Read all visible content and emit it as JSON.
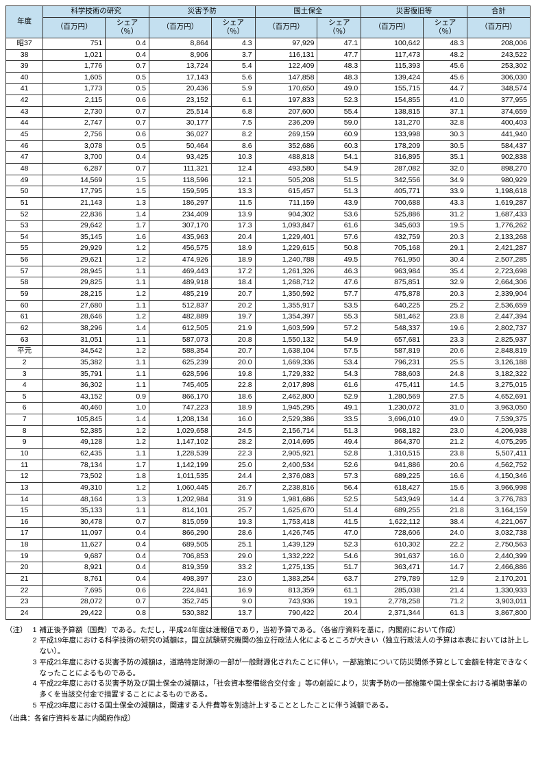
{
  "table": {
    "header_bg": "#c4e0f0",
    "border_color": "#333333",
    "columns": {
      "year": "年度",
      "groups": [
        {
          "label": "科学技術の研究",
          "val": "（百万円）",
          "pct": "シェア\n（％）"
        },
        {
          "label": "災害予防",
          "val": "（百万円）",
          "pct": "シェア\n（％）"
        },
        {
          "label": "国土保全",
          "val": "（百万円）",
          "pct": "シェア\n（％）"
        },
        {
          "label": "災害復旧等",
          "val": "（百万円）",
          "pct": "シェア\n（％）"
        }
      ],
      "total_label": "合計",
      "total_unit": "（百万円）"
    },
    "rows": [
      {
        "year": "昭37",
        "v": [
          [
            "751",
            "0.4"
          ],
          [
            "8,864",
            "4.3"
          ],
          [
            "97,929",
            "47.1"
          ],
          [
            "100,642",
            "48.3"
          ]
        ],
        "total": "208,006"
      },
      {
        "year": "38",
        "v": [
          [
            "1,021",
            "0.4"
          ],
          [
            "8,906",
            "3.7"
          ],
          [
            "116,131",
            "47.7"
          ],
          [
            "117,473",
            "48.2"
          ]
        ],
        "total": "243,522"
      },
      {
        "year": "39",
        "v": [
          [
            "1,776",
            "0.7"
          ],
          [
            "13,724",
            "5.4"
          ],
          [
            "122,409",
            "48.3"
          ],
          [
            "115,393",
            "45.6"
          ]
        ],
        "total": "253,302"
      },
      {
        "year": "40",
        "v": [
          [
            "1,605",
            "0.5"
          ],
          [
            "17,143",
            "5.6"
          ],
          [
            "147,858",
            "48.3"
          ],
          [
            "139,424",
            "45.6"
          ]
        ],
        "total": "306,030"
      },
      {
        "year": "41",
        "v": [
          [
            "1,773",
            "0.5"
          ],
          [
            "20,436",
            "5.9"
          ],
          [
            "170,650",
            "49.0"
          ],
          [
            "155,715",
            "44.7"
          ]
        ],
        "total": "348,574"
      },
      {
        "year": "42",
        "v": [
          [
            "2,115",
            "0.6"
          ],
          [
            "23,152",
            "6.1"
          ],
          [
            "197,833",
            "52.3"
          ],
          [
            "154,855",
            "41.0"
          ]
        ],
        "total": "377,955"
      },
      {
        "year": "43",
        "v": [
          [
            "2,730",
            "0.7"
          ],
          [
            "25,514",
            "6.8"
          ],
          [
            "207,600",
            "55.4"
          ],
          [
            "138,815",
            "37.1"
          ]
        ],
        "total": "374,659"
      },
      {
        "year": "44",
        "v": [
          [
            "2,747",
            "0.7"
          ],
          [
            "30,177",
            "7.5"
          ],
          [
            "236,209",
            "59.0"
          ],
          [
            "131,270",
            "32.8"
          ]
        ],
        "total": "400,403"
      },
      {
        "year": "45",
        "v": [
          [
            "2,756",
            "0.6"
          ],
          [
            "36,027",
            "8.2"
          ],
          [
            "269,159",
            "60.9"
          ],
          [
            "133,998",
            "30.3"
          ]
        ],
        "total": "441,940"
      },
      {
        "year": "46",
        "v": [
          [
            "3,078",
            "0.5"
          ],
          [
            "50,464",
            "8.6"
          ],
          [
            "352,686",
            "60.3"
          ],
          [
            "178,209",
            "30.5"
          ]
        ],
        "total": "584,437"
      },
      {
        "year": "47",
        "v": [
          [
            "3,700",
            "0.4"
          ],
          [
            "93,425",
            "10.3"
          ],
          [
            "488,818",
            "54.1"
          ],
          [
            "316,895",
            "35.1"
          ]
        ],
        "total": "902,838"
      },
      {
        "year": "48",
        "v": [
          [
            "6,287",
            "0.7"
          ],
          [
            "111,321",
            "12.4"
          ],
          [
            "493,580",
            "54.9"
          ],
          [
            "287,082",
            "32.0"
          ]
        ],
        "total": "898,270"
      },
      {
        "year": "49",
        "v": [
          [
            "14,569",
            "1.5"
          ],
          [
            "118,596",
            "12.1"
          ],
          [
            "505,208",
            "51.5"
          ],
          [
            "342,556",
            "34.9"
          ]
        ],
        "total": "980,929"
      },
      {
        "year": "50",
        "v": [
          [
            "17,795",
            "1.5"
          ],
          [
            "159,595",
            "13.3"
          ],
          [
            "615,457",
            "51.3"
          ],
          [
            "405,771",
            "33.9"
          ]
        ],
        "total": "1,198,618"
      },
      {
        "year": "51",
        "v": [
          [
            "21,143",
            "1.3"
          ],
          [
            "186,297",
            "11.5"
          ],
          [
            "711,159",
            "43.9"
          ],
          [
            "700,688",
            "43.3"
          ]
        ],
        "total": "1,619,287"
      },
      {
        "year": "52",
        "v": [
          [
            "22,836",
            "1.4"
          ],
          [
            "234,409",
            "13.9"
          ],
          [
            "904,302",
            "53.6"
          ],
          [
            "525,886",
            "31.2"
          ]
        ],
        "total": "1,687,433"
      },
      {
        "year": "53",
        "v": [
          [
            "29,642",
            "1.7"
          ],
          [
            "307,170",
            "17.3"
          ],
          [
            "1,093,847",
            "61.6"
          ],
          [
            "345,603",
            "19.5"
          ]
        ],
        "total": "1,776,262"
      },
      {
        "year": "54",
        "v": [
          [
            "35,145",
            "1.6"
          ],
          [
            "435,963",
            "20.4"
          ],
          [
            "1,229,401",
            "57.6"
          ],
          [
            "432,759",
            "20.3"
          ]
        ],
        "total": "2,133,268"
      },
      {
        "year": "55",
        "v": [
          [
            "29,929",
            "1.2"
          ],
          [
            "456,575",
            "18.9"
          ],
          [
            "1,229,615",
            "50.8"
          ],
          [
            "705,168",
            "29.1"
          ]
        ],
        "total": "2,421,287"
      },
      {
        "year": "56",
        "v": [
          [
            "29,621",
            "1.2"
          ],
          [
            "474,926",
            "18.9"
          ],
          [
            "1,240,788",
            "49.5"
          ],
          [
            "761,950",
            "30.4"
          ]
        ],
        "total": "2,507,285"
      },
      {
        "year": "57",
        "v": [
          [
            "28,945",
            "1.1"
          ],
          [
            "469,443",
            "17.2"
          ],
          [
            "1,261,326",
            "46.3"
          ],
          [
            "963,984",
            "35.4"
          ]
        ],
        "total": "2,723,698"
      },
      {
        "year": "58",
        "v": [
          [
            "29,825",
            "1.1"
          ],
          [
            "489,918",
            "18.4"
          ],
          [
            "1,268,712",
            "47.6"
          ],
          [
            "875,851",
            "32.9"
          ]
        ],
        "total": "2,664,306"
      },
      {
        "year": "59",
        "v": [
          [
            "28,215",
            "1.2"
          ],
          [
            "485,219",
            "20.7"
          ],
          [
            "1,350,592",
            "57.7"
          ],
          [
            "475,878",
            "20.3"
          ]
        ],
        "total": "2,339,904"
      },
      {
        "year": "60",
        "v": [
          [
            "27,680",
            "1.1"
          ],
          [
            "512,837",
            "20.2"
          ],
          [
            "1,355,917",
            "53.5"
          ],
          [
            "640,225",
            "25.2"
          ]
        ],
        "total": "2,536,659"
      },
      {
        "year": "61",
        "v": [
          [
            "28,646",
            "1.2"
          ],
          [
            "482,889",
            "19.7"
          ],
          [
            "1,354,397",
            "55.3"
          ],
          [
            "581,462",
            "23.8"
          ]
        ],
        "total": "2,447,394"
      },
      {
        "year": "62",
        "v": [
          [
            "38,296",
            "1.4"
          ],
          [
            "612,505",
            "21.9"
          ],
          [
            "1,603,599",
            "57.2"
          ],
          [
            "548,337",
            "19.6"
          ]
        ],
        "total": "2,802,737"
      },
      {
        "year": "63",
        "v": [
          [
            "31,051",
            "1.1"
          ],
          [
            "587,073",
            "20.8"
          ],
          [
            "1,550,132",
            "54.9"
          ],
          [
            "657,681",
            "23.3"
          ]
        ],
        "total": "2,825,937"
      },
      {
        "year": "平元",
        "v": [
          [
            "34,542",
            "1.2"
          ],
          [
            "588,354",
            "20.7"
          ],
          [
            "1,638,104",
            "57.5"
          ],
          [
            "587,819",
            "20.6"
          ]
        ],
        "total": "2,848,819"
      },
      {
        "year": "2",
        "v": [
          [
            "35,382",
            "1.1"
          ],
          [
            "625,239",
            "20.0"
          ],
          [
            "1,669,336",
            "53.4"
          ],
          [
            "796,231",
            "25.5"
          ]
        ],
        "total": "3,126,188"
      },
      {
        "year": "3",
        "v": [
          [
            "35,791",
            "1.1"
          ],
          [
            "628,596",
            "19.8"
          ],
          [
            "1,729,332",
            "54.3"
          ],
          [
            "788,603",
            "24.8"
          ]
        ],
        "total": "3,182,322"
      },
      {
        "year": "4",
        "v": [
          [
            "36,302",
            "1.1"
          ],
          [
            "745,405",
            "22.8"
          ],
          [
            "2,017,898",
            "61.6"
          ],
          [
            "475,411",
            "14.5"
          ]
        ],
        "total": "3,275,015"
      },
      {
        "year": "5",
        "v": [
          [
            "43,152",
            "0.9"
          ],
          [
            "866,170",
            "18.6"
          ],
          [
            "2,462,800",
            "52.9"
          ],
          [
            "1,280,569",
            "27.5"
          ]
        ],
        "total": "4,652,691"
      },
      {
        "year": "6",
        "v": [
          [
            "40,460",
            "1.0"
          ],
          [
            "747,223",
            "18.9"
          ],
          [
            "1,945,295",
            "49.1"
          ],
          [
            "1,230,072",
            "31.0"
          ]
        ],
        "total": "3,963,050"
      },
      {
        "year": "7",
        "v": [
          [
            "105,845",
            "1.4"
          ],
          [
            "1,208,134",
            "16.0"
          ],
          [
            "2,529,386",
            "33.5"
          ],
          [
            "3,696,010",
            "49.0"
          ]
        ],
        "total": "7,539,375"
      },
      {
        "year": "8",
        "v": [
          [
            "52,385",
            "1.2"
          ],
          [
            "1,029,658",
            "24.5"
          ],
          [
            "2,156,714",
            "51.3"
          ],
          [
            "968,182",
            "23.0"
          ]
        ],
        "total": "4,206,938"
      },
      {
        "year": "9",
        "v": [
          [
            "49,128",
            "1.2"
          ],
          [
            "1,147,102",
            "28.2"
          ],
          [
            "2,014,695",
            "49.4"
          ],
          [
            "864,370",
            "21.2"
          ]
        ],
        "total": "4,075,295"
      },
      {
        "year": "10",
        "v": [
          [
            "62,435",
            "1.1"
          ],
          [
            "1,228,539",
            "22.3"
          ],
          [
            "2,905,921",
            "52.8"
          ],
          [
            "1,310,515",
            "23.8"
          ]
        ],
        "total": "5,507,411"
      },
      {
        "year": "11",
        "v": [
          [
            "78,134",
            "1.7"
          ],
          [
            "1,142,199",
            "25.0"
          ],
          [
            "2,400,534",
            "52.6"
          ],
          [
            "941,886",
            "20.6"
          ]
        ],
        "total": "4,562,752"
      },
      {
        "year": "12",
        "v": [
          [
            "73,502",
            "1.8"
          ],
          [
            "1,011,535",
            "24.4"
          ],
          [
            "2,376,083",
            "57.3"
          ],
          [
            "689,225",
            "16.6"
          ]
        ],
        "total": "4,150,346"
      },
      {
        "year": "13",
        "v": [
          [
            "49,310",
            "1.2"
          ],
          [
            "1,060,445",
            "26.7"
          ],
          [
            "2,238,816",
            "56.4"
          ],
          [
            "618,427",
            "15.6"
          ]
        ],
        "total": "3,966,998"
      },
      {
        "year": "14",
        "v": [
          [
            "48,164",
            "1.3"
          ],
          [
            "1,202,984",
            "31.9"
          ],
          [
            "1,981,686",
            "52.5"
          ],
          [
            "543,949",
            "14.4"
          ]
        ],
        "total": "3,776,783"
      },
      {
        "year": "15",
        "v": [
          [
            "35,133",
            "1.1"
          ],
          [
            "814,101",
            "25.7"
          ],
          [
            "1,625,670",
            "51.4"
          ],
          [
            "689,255",
            "21.8"
          ]
        ],
        "total": "3,164,159"
      },
      {
        "year": "16",
        "v": [
          [
            "30,478",
            "0.7"
          ],
          [
            "815,059",
            "19.3"
          ],
          [
            "1,753,418",
            "41.5"
          ],
          [
            "1,622,112",
            "38.4"
          ]
        ],
        "total": "4,221,067"
      },
      {
        "year": "17",
        "v": [
          [
            "11,097",
            "0.4"
          ],
          [
            "866,290",
            "28.6"
          ],
          [
            "1,426,745",
            "47.0"
          ],
          [
            "728,606",
            "24.0"
          ]
        ],
        "total": "3,032,738"
      },
      {
        "year": "18",
        "v": [
          [
            "11,627",
            "0.4"
          ],
          [
            "689,505",
            "25.1"
          ],
          [
            "1,439,129",
            "52.3"
          ],
          [
            "610,302",
            "22.2"
          ]
        ],
        "total": "2,750,563"
      },
      {
        "year": "19",
        "v": [
          [
            "9,687",
            "0.4"
          ],
          [
            "706,853",
            "29.0"
          ],
          [
            "1,332,222",
            "54.6"
          ],
          [
            "391,637",
            "16.0"
          ]
        ],
        "total": "2,440,399"
      },
      {
        "year": "20",
        "v": [
          [
            "8,921",
            "0.4"
          ],
          [
            "819,359",
            "33.2"
          ],
          [
            "1,275,135",
            "51.7"
          ],
          [
            "363,471",
            "14.7"
          ]
        ],
        "total": "2,466,886"
      },
      {
        "year": "21",
        "v": [
          [
            "8,761",
            "0.4"
          ],
          [
            "498,397",
            "23.0"
          ],
          [
            "1,383,254",
            "63.7"
          ],
          [
            "279,789",
            "12.9"
          ]
        ],
        "total": "2,170,201"
      },
      {
        "year": "22",
        "v": [
          [
            "7,695",
            "0.6"
          ],
          [
            "224,841",
            "16.9"
          ],
          [
            "813,359",
            "61.1"
          ],
          [
            "285,038",
            "21.4"
          ]
        ],
        "total": "1,330,933"
      },
      {
        "year": "23",
        "v": [
          [
            "28,072",
            "0.7"
          ],
          [
            "352,745",
            "9.0"
          ],
          [
            "743,936",
            "19.1"
          ],
          [
            "2,778,258",
            "71.2"
          ]
        ],
        "total": "3,903,011"
      },
      {
        "year": "24",
        "v": [
          [
            "29,422",
            "0.8"
          ],
          [
            "530,382",
            "13.7"
          ],
          [
            "790,422",
            "20.4"
          ],
          [
            "2,371,344",
            "61.3"
          ]
        ],
        "total": "3,867,800"
      }
    ]
  },
  "notes": {
    "prefix": "（注）",
    "items": [
      "補正後予算額（国費）である。ただし，平成24年度は速報値であり，当初予算である。（各省庁資料を基に，内閣府において作成）",
      "平成19年度における科学技術の研究の減額は，国立試験研究機関の独立行政法人化によるところが大きい（独立行政法人の予算は本表においては計上しない）。",
      "平成21年度における災害予防の減額は，道路特定財源の一部が一般財源化されたことに伴い，一部施策について防災関係予算として金額を特定できなくなったことによるものである。",
      "平成22年度における災害予防及び国土保全の減額は，「社会資本整備総合交付金 」等の創設により，災害予防の一部施策や国土保全における補助事業の多くを当該交付金で措置することによるものである。",
      "平成23年度における国土保全の減額は，関連する人件費等を別途計上することとしたことに伴う減額である。"
    ]
  },
  "source": "（出典：各省庁資料を基に内閣府作成）"
}
